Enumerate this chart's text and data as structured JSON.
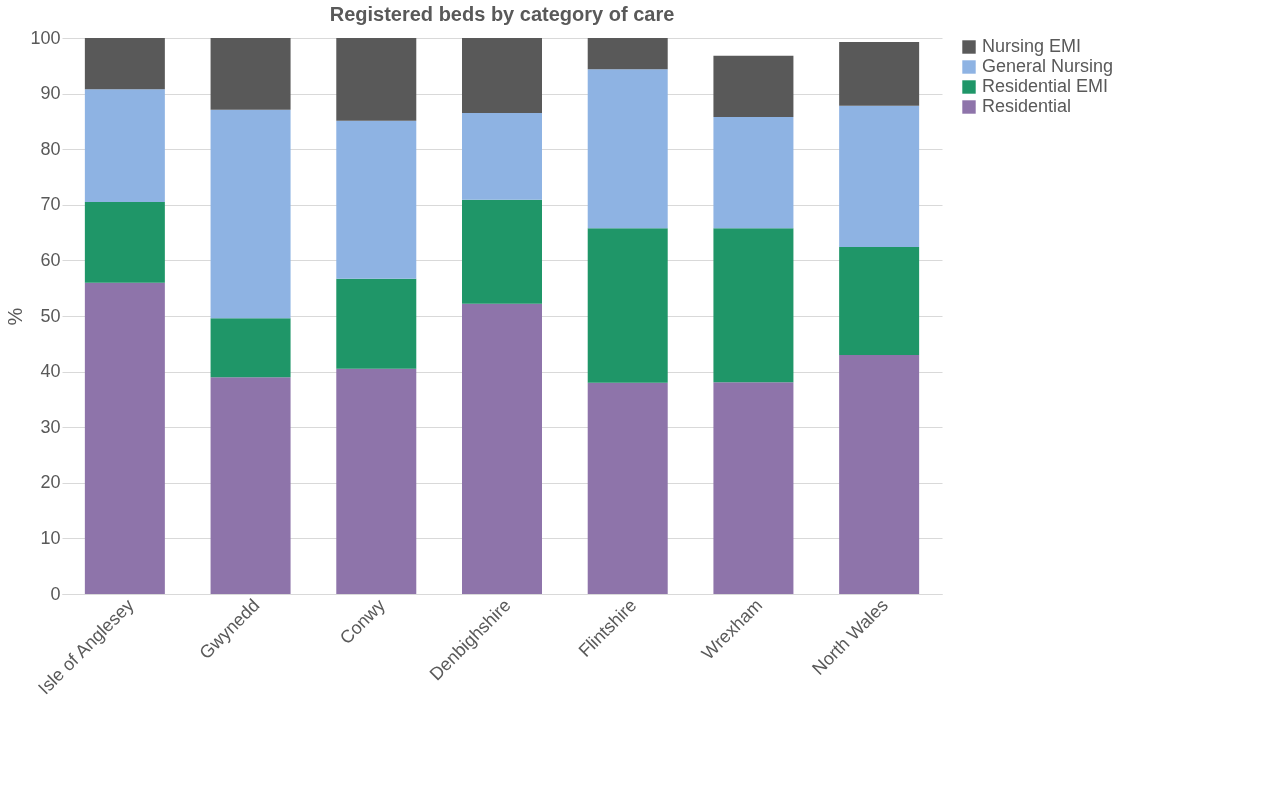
{
  "chart_data": {
    "type": "bar",
    "stacked": true,
    "title": "Registered beds by category of care",
    "ylabel": "%",
    "categories": [
      "Isle of Anglesey",
      "Gwynedd",
      "Conwy",
      "Denbighshire",
      "Flintshire",
      "Wrexham",
      "North Wales"
    ],
    "series": [
      {
        "name": "Residential",
        "color": "#8e74aa",
        "values": [
          56,
          39,
          40.5,
          52.2,
          38,
          38.1,
          43
        ]
      },
      {
        "name": "Residential EMI",
        "color": "#1f9668",
        "values": [
          14.5,
          10.6,
          16.2,
          18.7,
          27.8,
          27.7,
          19.4
        ]
      },
      {
        "name": "General Nursing",
        "color": "#8eb3e3",
        "values": [
          20.3,
          37.5,
          28.4,
          15.6,
          28.6,
          20,
          25.4
        ]
      },
      {
        "name": "Nursing EMI",
        "color": "#595959",
        "values": [
          9.2,
          12.9,
          14.9,
          13.5,
          5.6,
          11,
          11.5
        ]
      }
    ],
    "ylim": [
      0,
      100
    ],
    "yticks": [
      0,
      10,
      20,
      30,
      40,
      50,
      60,
      70,
      80,
      90,
      100
    ],
    "grid": "y",
    "legend": "right"
  }
}
